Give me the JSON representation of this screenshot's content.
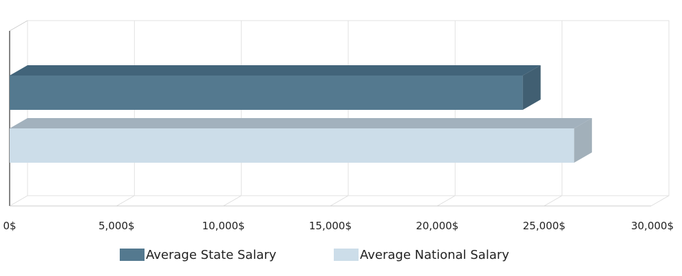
{
  "chart_data": {
    "type": "bar",
    "orientation": "horizontal",
    "three_d": true,
    "title": "",
    "xlabel": "",
    "ylabel": "",
    "xlim": [
      0,
      30000
    ],
    "x_ticks": [
      0,
      5000,
      10000,
      15000,
      20000,
      25000,
      30000
    ],
    "x_tick_labels": [
      "0$",
      "5,000$",
      "10,000$",
      "15,000$",
      "20,000$",
      "25,000$",
      "30,000$"
    ],
    "grid": true,
    "legend_position": "bottom",
    "series": [
      {
        "name": "Average State Salary",
        "values": [
          24000
        ],
        "color": "#54798f"
      },
      {
        "name": "Average National Salary",
        "values": [
          26400
        ],
        "color": "#ccdde9"
      }
    ]
  }
}
